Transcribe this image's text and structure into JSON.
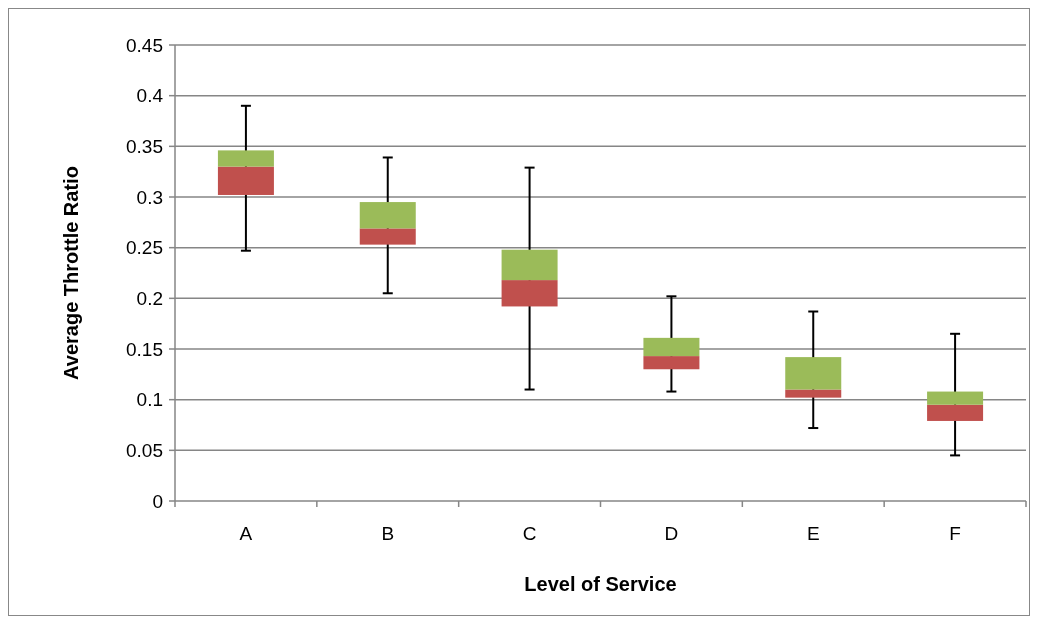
{
  "chart_data": {
    "type": "box",
    "xlabel": "Level of Service",
    "ylabel": "Average Throttle Ratio",
    "categories": [
      "A",
      "B",
      "C",
      "D",
      "E",
      "F"
    ],
    "ylim": [
      0,
      0.45
    ],
    "yticks": [
      0,
      0.05,
      0.1,
      0.15,
      0.2,
      0.25,
      0.3,
      0.35,
      0.4,
      0.45
    ],
    "grid": "y",
    "series": [
      {
        "colors": [
          [
            "#c0504d",
            "#9bbb59"
          ],
          [
            "#c0504d",
            "#9bbb59"
          ],
          [
            "#c0504d",
            "#9bbb59"
          ],
          [
            "#c0504d",
            "#9bbb59"
          ],
          [
            "#c0504d",
            "#9bbb59"
          ],
          [
            "#c0504d",
            "#9bbb59"
          ]
        ],
        "boxes": [
          {
            "low": 0.247,
            "q1": 0.302,
            "median": 0.33,
            "q3": 0.346,
            "high": 0.39
          },
          {
            "low": 0.205,
            "q1": 0.253,
            "median": 0.269,
            "q3": 0.295,
            "high": 0.339
          },
          {
            "low": 0.11,
            "q1": 0.192,
            "median": 0.218,
            "q3": 0.248,
            "high": 0.329
          },
          {
            "low": 0.108,
            "q1": 0.13,
            "median": 0.143,
            "q3": 0.161,
            "high": 0.202
          },
          {
            "low": 0.072,
            "q1": 0.102,
            "median": 0.11,
            "q3": 0.142,
            "high": 0.187
          },
          {
            "low": 0.045,
            "q1": 0.079,
            "median": 0.095,
            "q3": 0.108,
            "high": 0.165
          }
        ]
      }
    ]
  }
}
